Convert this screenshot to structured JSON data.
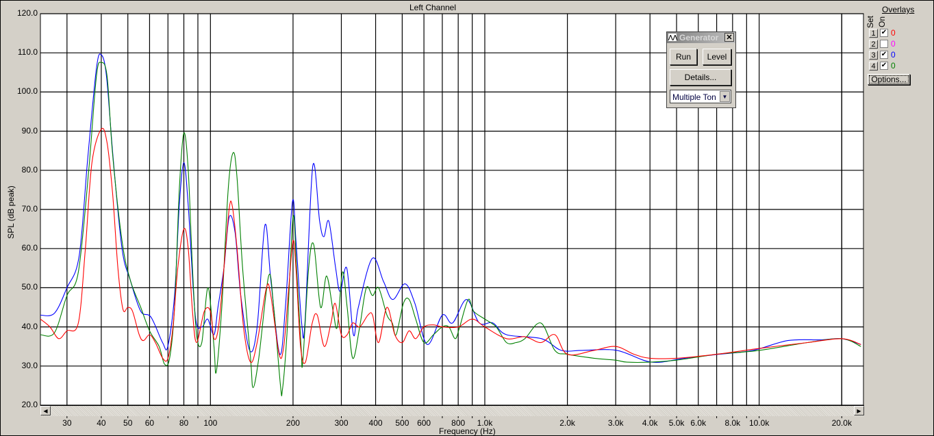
{
  "chart_data": {
    "type": "line",
    "title": "Left Channel",
    "xlabel": "Frequency (Hz)",
    "ylabel": "SPL (dB peak)",
    "xscale": "log",
    "xlim": [
      24,
      24000
    ],
    "ylim": [
      20,
      120
    ],
    "grid": true,
    "y_ticks": [
      "120.0",
      "110.0",
      "100.0",
      "90.0",
      "80.0",
      "70.0",
      "60.0",
      "50.0",
      "40.0",
      "30.0",
      "20.0"
    ],
    "x_ticks": [
      {
        "v": 30,
        "label": "30"
      },
      {
        "v": 40,
        "label": "40"
      },
      {
        "v": 50,
        "label": "50"
      },
      {
        "v": 60,
        "label": "60"
      },
      {
        "v": 80,
        "label": "80"
      },
      {
        "v": 100,
        "label": "100"
      },
      {
        "v": 200,
        "label": "200"
      },
      {
        "v": 300,
        "label": "300"
      },
      {
        "v": 400,
        "label": "400"
      },
      {
        "v": 500,
        "label": "500"
      },
      {
        "v": 600,
        "label": "600"
      },
      {
        "v": 800,
        "label": "800"
      },
      {
        "v": 1000,
        "label": "1.0k"
      },
      {
        "v": 2000,
        "label": "2.0k"
      },
      {
        "v": 3000,
        "label": "3.0k"
      },
      {
        "v": 4000,
        "label": "4.0k"
      },
      {
        "v": 5000,
        "label": "5.0k"
      },
      {
        "v": 6000,
        "label": "6.0k"
      },
      {
        "v": 8000,
        "label": "8.0k"
      },
      {
        "v": 10000,
        "label": "10.0k"
      },
      {
        "v": 20000,
        "label": "20.0k"
      }
    ],
    "series": [
      {
        "color": "#0000ff",
        "points": [
          [
            24,
            43
          ],
          [
            27,
            43.5
          ],
          [
            30,
            50
          ],
          [
            33.2,
            58
          ],
          [
            35.7,
            83
          ],
          [
            38.4,
            106
          ],
          [
            40,
            109.5
          ],
          [
            41.8,
            104
          ],
          [
            44.2,
            83
          ],
          [
            47.6,
            60
          ],
          [
            51,
            52
          ],
          [
            55.7,
            44
          ],
          [
            60.7,
            42.5
          ],
          [
            66.9,
            36
          ],
          [
            69.9,
            35
          ],
          [
            74,
            48
          ],
          [
            77,
            71
          ],
          [
            80,
            82
          ],
          [
            83,
            71
          ],
          [
            88,
            43
          ],
          [
            93,
            40
          ],
          [
            97.7,
            42
          ],
          [
            103,
            38
          ],
          [
            106.5,
            45
          ],
          [
            112,
            55
          ],
          [
            117,
            68
          ],
          [
            123,
            64
          ],
          [
            129,
            48
          ],
          [
            139,
            34
          ],
          [
            148,
            40
          ],
          [
            158,
            66
          ],
          [
            166,
            52
          ],
          [
            179,
            33
          ],
          [
            188,
            46
          ],
          [
            199,
            72
          ],
          [
            205,
            62
          ],
          [
            215,
            41
          ],
          [
            221,
            41
          ],
          [
            236,
            81
          ],
          [
            250,
            67
          ],
          [
            259,
            63
          ],
          [
            270,
            67
          ],
          [
            286,
            55
          ],
          [
            297,
            49
          ],
          [
            314,
            55
          ],
          [
            332,
            38
          ],
          [
            346,
            45
          ],
          [
            389,
            57.5
          ],
          [
            428,
            51.5
          ],
          [
            462,
            47
          ],
          [
            512,
            51
          ],
          [
            556,
            46
          ],
          [
            617,
            35.5
          ],
          [
            700,
            43
          ],
          [
            763,
            41
          ],
          [
            858,
            47
          ],
          [
            955,
            41
          ],
          [
            1070,
            41
          ],
          [
            1200,
            38
          ],
          [
            1610,
            37
          ],
          [
            1900,
            34
          ],
          [
            2270,
            34
          ],
          [
            3030,
            34
          ],
          [
            4050,
            31
          ],
          [
            5340,
            32
          ],
          [
            7130,
            33
          ],
          [
            9500,
            34
          ],
          [
            12700,
            36.5
          ],
          [
            16900,
            36.7
          ],
          [
            20000,
            37
          ],
          [
            23500,
            35.5
          ]
        ]
      },
      {
        "color": "#008000",
        "points": [
          [
            24,
            38
          ],
          [
            27,
            38.5
          ],
          [
            30,
            48
          ],
          [
            33,
            54
          ],
          [
            36,
            80
          ],
          [
            38.4,
            104
          ],
          [
            40,
            107.5
          ],
          [
            42,
            104
          ],
          [
            44,
            84
          ],
          [
            47.6,
            62
          ],
          [
            51,
            52
          ],
          [
            55.7,
            45
          ],
          [
            60,
            39
          ],
          [
            65,
            35
          ],
          [
            68,
            30.5
          ],
          [
            71,
            32
          ],
          [
            74,
            45
          ],
          [
            77,
            75
          ],
          [
            80,
            89.5
          ],
          [
            83,
            80
          ],
          [
            86,
            55
          ],
          [
            89,
            38
          ],
          [
            93,
            36
          ],
          [
            98,
            50
          ],
          [
            103,
            35
          ],
          [
            105,
            28.5
          ],
          [
            110,
            45
          ],
          [
            116,
            75
          ],
          [
            121,
            84.5
          ],
          [
            125,
            78
          ],
          [
            131,
            55
          ],
          [
            140,
            32
          ],
          [
            143,
            24.5
          ],
          [
            150,
            32
          ],
          [
            163,
            53
          ],
          [
            170,
            45
          ],
          [
            180,
            25
          ],
          [
            183,
            24
          ],
          [
            190,
            38
          ],
          [
            200,
            68
          ],
          [
            206,
            55
          ],
          [
            214,
            35
          ],
          [
            217,
            31
          ],
          [
            228,
            55
          ],
          [
            238,
            61
          ],
          [
            252,
            45
          ],
          [
            265,
            53
          ],
          [
            280,
            44
          ],
          [
            290,
            40
          ],
          [
            303,
            54
          ],
          [
            315,
            45
          ],
          [
            330,
            32
          ],
          [
            350,
            40
          ],
          [
            370,
            50
          ],
          [
            390,
            48
          ],
          [
            410,
            50
          ],
          [
            440,
            43
          ],
          [
            460,
            41
          ],
          [
            475,
            38
          ],
          [
            505,
            46
          ],
          [
            530,
            47
          ],
          [
            560,
            42
          ],
          [
            600,
            36
          ],
          [
            650,
            38
          ],
          [
            700,
            40
          ],
          [
            740,
            40
          ],
          [
            780,
            37
          ],
          [
            810,
            40
          ],
          [
            870,
            47
          ],
          [
            910,
            44
          ],
          [
            1000,
            42
          ],
          [
            1100,
            40
          ],
          [
            1200,
            36
          ],
          [
            1300,
            36
          ],
          [
            1400,
            37
          ],
          [
            1600,
            41
          ],
          [
            1800,
            34
          ],
          [
            2000,
            33
          ],
          [
            2500,
            32
          ],
          [
            3000,
            31.5
          ],
          [
            3300,
            31
          ],
          [
            4000,
            31
          ],
          [
            5000,
            31.5
          ],
          [
            7000,
            33
          ],
          [
            10000,
            34
          ],
          [
            15000,
            36
          ],
          [
            20000,
            37
          ],
          [
            23500,
            35
          ]
        ]
      },
      {
        "color": "#ff0000",
        "points": [
          [
            24,
            42
          ],
          [
            26,
            40
          ],
          [
            28,
            37
          ],
          [
            30,
            39
          ],
          [
            33,
            41
          ],
          [
            35,
            60
          ],
          [
            37,
            82
          ],
          [
            40,
            90.5
          ],
          [
            42,
            87
          ],
          [
            44,
            74
          ],
          [
            46,
            55
          ],
          [
            48,
            44.5
          ],
          [
            50,
            45
          ],
          [
            52,
            44
          ],
          [
            55,
            38
          ],
          [
            57,
            36.5
          ],
          [
            60,
            38
          ],
          [
            63,
            36
          ],
          [
            67,
            32
          ],
          [
            70,
            32
          ],
          [
            73,
            40
          ],
          [
            76,
            55
          ],
          [
            80,
            65
          ],
          [
            83,
            60
          ],
          [
            86,
            44
          ],
          [
            89,
            36
          ],
          [
            95,
            44
          ],
          [
            100,
            44
          ],
          [
            103,
            37
          ],
          [
            107,
            40
          ],
          [
            112,
            55
          ],
          [
            117,
            70
          ],
          [
            120,
            71
          ],
          [
            125,
            60
          ],
          [
            132,
            40
          ],
          [
            140,
            31
          ],
          [
            148,
            36
          ],
          [
            160,
            50
          ],
          [
            166,
            48
          ],
          [
            178,
            33
          ],
          [
            185,
            35
          ],
          [
            193,
            50
          ],
          [
            200,
            62
          ],
          [
            205,
            55
          ],
          [
            213,
            35
          ],
          [
            222,
            31
          ],
          [
            235,
            41
          ],
          [
            245,
            43
          ],
          [
            260,
            35
          ],
          [
            275,
            41
          ],
          [
            285,
            46
          ],
          [
            300,
            38
          ],
          [
            315,
            38
          ],
          [
            330,
            41
          ],
          [
            350,
            40
          ],
          [
            375,
            43
          ],
          [
            390,
            43
          ],
          [
            410,
            36
          ],
          [
            440,
            45
          ],
          [
            470,
            38
          ],
          [
            500,
            36
          ],
          [
            530,
            39
          ],
          [
            560,
            37
          ],
          [
            600,
            40
          ],
          [
            650,
            40.5
          ],
          [
            700,
            40
          ],
          [
            800,
            40
          ],
          [
            900,
            42
          ],
          [
            1000,
            40
          ],
          [
            1200,
            37
          ],
          [
            1400,
            37.5
          ],
          [
            1600,
            36
          ],
          [
            1800,
            38
          ],
          [
            2000,
            33
          ],
          [
            2500,
            34
          ],
          [
            3000,
            35
          ],
          [
            3500,
            33
          ],
          [
            4000,
            32
          ],
          [
            5000,
            32
          ],
          [
            7000,
            33
          ],
          [
            10000,
            34.5
          ],
          [
            15000,
            36
          ],
          [
            20000,
            37
          ],
          [
            23500,
            35.5
          ]
        ]
      }
    ]
  },
  "generator": {
    "title": "Generator",
    "run_label": "Run",
    "level_label": "Level",
    "details_label": "Details...",
    "mode_value": "Multiple Ton"
  },
  "overlays": {
    "title": "Overlays",
    "set_header": "Set",
    "on_header": "On",
    "rows": [
      {
        "set": "1",
        "on": true,
        "value": "0",
        "color": "#ff0000"
      },
      {
        "set": "2",
        "on": false,
        "value": "0",
        "color": "#ff00ff"
      },
      {
        "set": "3",
        "on": true,
        "value": "0",
        "color": "#0000ff"
      },
      {
        "set": "4",
        "on": true,
        "value": "0",
        "color": "#008000"
      }
    ],
    "options_label": "Options..."
  }
}
